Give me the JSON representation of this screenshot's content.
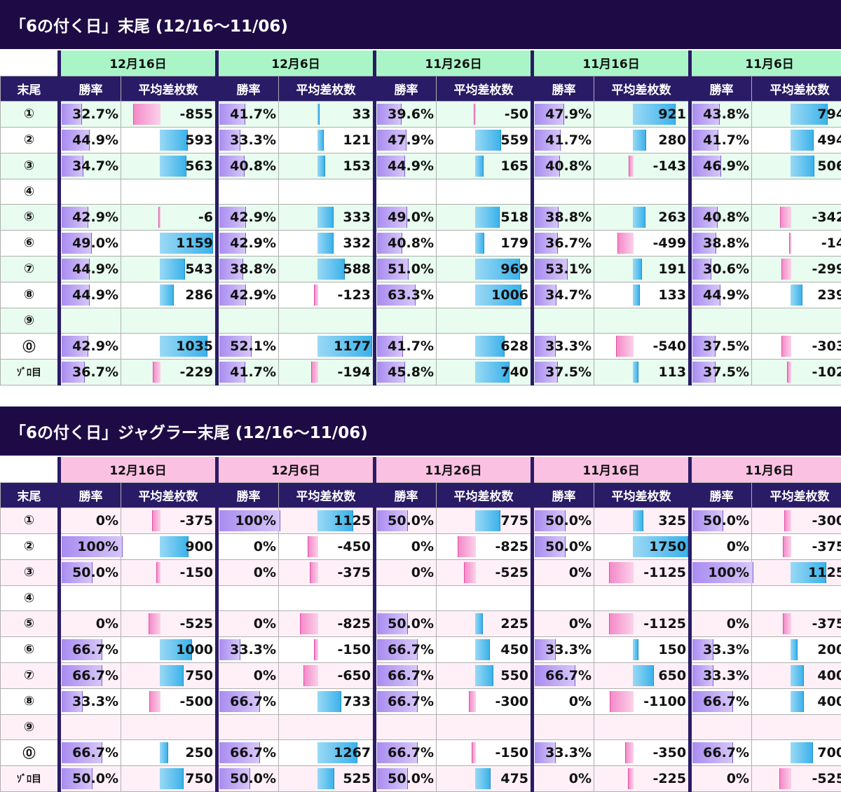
{
  "colors": {
    "title_bg": "#1e0b45",
    "label_header_bg": "#2a1b66",
    "section1_header_bg": "#aaf5c8",
    "section1_odd_row_bg": "#e8fcef",
    "section2_header_bg": "#fbc1e3",
    "section2_odd_row_bg": "#fff0f8"
  },
  "header_labels": {
    "col_label": "末尾",
    "rate": "勝率",
    "diff": "平均差枚数"
  },
  "row_labels": [
    "①",
    "②",
    "③",
    "④",
    "⑤",
    "⑥",
    "⑦",
    "⑧",
    "⑨",
    "⓪",
    "ｿﾞﾛ目"
  ],
  "sections": [
    {
      "title": "「6の付く日」末尾 (12/16～11/06)",
      "dates": [
        "12月16日",
        "12月6日",
        "11月26日",
        "11月16日",
        "11月6日"
      ],
      "diff_scale": 1200,
      "rows": [
        [
          [
            "32.7%",
            -855
          ],
          [
            "41.7%",
            33
          ],
          [
            "39.6%",
            -50
          ],
          [
            "47.9%",
            921
          ],
          [
            "43.8%",
            794
          ]
        ],
        [
          [
            "44.9%",
            593
          ],
          [
            "33.3%",
            121
          ],
          [
            "47.9%",
            559
          ],
          [
            "41.7%",
            280
          ],
          [
            "41.7%",
            494
          ]
        ],
        [
          [
            "34.7%",
            563
          ],
          [
            "40.8%",
            153
          ],
          [
            "44.9%",
            165
          ],
          [
            "40.8%",
            -143
          ],
          [
            "46.9%",
            506
          ]
        ],
        [
          null,
          null,
          null,
          null,
          null
        ],
        [
          [
            "42.9%",
            -6
          ],
          [
            "42.9%",
            333
          ],
          [
            "49.0%",
            518
          ],
          [
            "38.8%",
            263
          ],
          [
            "40.8%",
            -342
          ]
        ],
        [
          [
            "49.0%",
            1159
          ],
          [
            "42.9%",
            332
          ],
          [
            "40.8%",
            179
          ],
          [
            "36.7%",
            -499
          ],
          [
            "38.8%",
            -14
          ]
        ],
        [
          [
            "44.9%",
            543
          ],
          [
            "38.8%",
            588
          ],
          [
            "51.0%",
            969
          ],
          [
            "53.1%",
            191
          ],
          [
            "30.6%",
            -299
          ]
        ],
        [
          [
            "44.9%",
            286
          ],
          [
            "42.9%",
            -123
          ],
          [
            "63.3%",
            1006
          ],
          [
            "34.7%",
            133
          ],
          [
            "44.9%",
            239
          ]
        ],
        [
          null,
          null,
          null,
          null,
          null
        ],
        [
          [
            "42.9%",
            1035
          ],
          [
            "52.1%",
            1177
          ],
          [
            "41.7%",
            628
          ],
          [
            "33.3%",
            -540
          ],
          [
            "37.5%",
            -303
          ]
        ],
        [
          [
            "36.7%",
            -229
          ],
          [
            "41.7%",
            -194
          ],
          [
            "45.8%",
            740
          ],
          [
            "37.5%",
            113
          ],
          [
            "37.5%",
            -102
          ]
        ]
      ]
    },
    {
      "title": "「6の付く日」ジャグラー末尾 (12/16～11/06)",
      "dates": [
        "12月16日",
        "12月6日",
        "11月26日",
        "11月16日",
        "11月6日"
      ],
      "diff_scale": 1750,
      "rows": [
        [
          [
            "0%",
            -375
          ],
          [
            "100%",
            1125
          ],
          [
            "50.0%",
            775
          ],
          [
            "50.0%",
            325
          ],
          [
            "50.0%",
            -300
          ]
        ],
        [
          [
            "100%",
            900
          ],
          [
            "0%",
            -450
          ],
          [
            "0%",
            -825
          ],
          [
            "50.0%",
            1750
          ],
          [
            "0%",
            -375
          ]
        ],
        [
          [
            "50.0%",
            -150
          ],
          [
            "0%",
            -375
          ],
          [
            "0%",
            -525
          ],
          [
            "0%",
            -1125
          ],
          [
            "100%",
            1125
          ]
        ],
        [
          null,
          null,
          null,
          null,
          null
        ],
        [
          [
            "0%",
            -525
          ],
          [
            "0%",
            -825
          ],
          [
            "50.0%",
            225
          ],
          [
            "0%",
            -1125
          ],
          [
            "0%",
            -375
          ]
        ],
        [
          [
            "66.7%",
            1000
          ],
          [
            "33.3%",
            -150
          ],
          [
            "66.7%",
            450
          ],
          [
            "33.3%",
            150
          ],
          [
            "33.3%",
            200
          ]
        ],
        [
          [
            "66.7%",
            750
          ],
          [
            "0%",
            -650
          ],
          [
            "66.7%",
            550
          ],
          [
            "66.7%",
            650
          ],
          [
            "33.3%",
            400
          ]
        ],
        [
          [
            "33.3%",
            -500
          ],
          [
            "66.7%",
            733
          ],
          [
            "66.7%",
            -300
          ],
          [
            "0%",
            -1100
          ],
          [
            "66.7%",
            400
          ]
        ],
        [
          null,
          null,
          null,
          null,
          null
        ],
        [
          [
            "66.7%",
            250
          ],
          [
            "66.7%",
            1267
          ],
          [
            "66.7%",
            -150
          ],
          [
            "33.3%",
            -350
          ],
          [
            "66.7%",
            700
          ]
        ],
        [
          [
            "50.0%",
            750
          ],
          [
            "50.0%",
            525
          ],
          [
            "50.0%",
            475
          ],
          [
            "0%",
            -225
          ],
          [
            "0%",
            -525
          ]
        ]
      ]
    }
  ]
}
